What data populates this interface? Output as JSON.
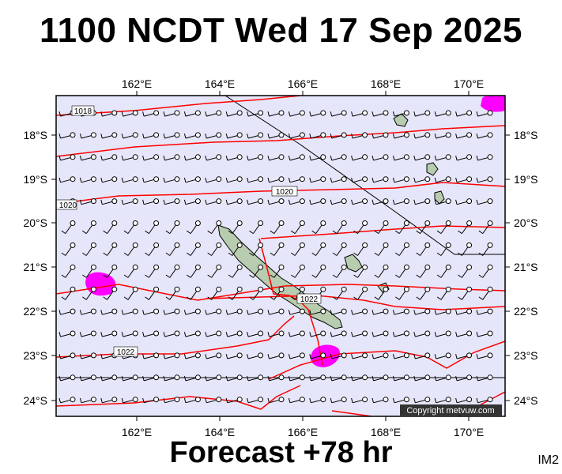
{
  "title": "1100 NCDT Wed 17 Sep 2025",
  "footer": "Forecast +78 hr",
  "image_tag": "IM2",
  "copyright": "Copyright metvuw.com",
  "map": {
    "lon_range": [
      160.0,
      170.8
    ],
    "lat_range": [
      -24.4,
      -17.0
    ],
    "lon_ticks": [
      "162°E",
      "164°E",
      "166°E",
      "168°E",
      "170°E"
    ],
    "lat_ticks": [
      "18°S",
      "19°S",
      "20°S",
      "21°S",
      "22°S",
      "23°S",
      "24°S"
    ],
    "isobar_labels": [
      "1018",
      "1020",
      "1020",
      "1022",
      "1022"
    ],
    "colors": {
      "ocean": "#e6e6fa",
      "isobar": "#ff0000",
      "rain": "#ff00ff",
      "land": "#b8ccb0",
      "wind": "#000000"
    }
  }
}
